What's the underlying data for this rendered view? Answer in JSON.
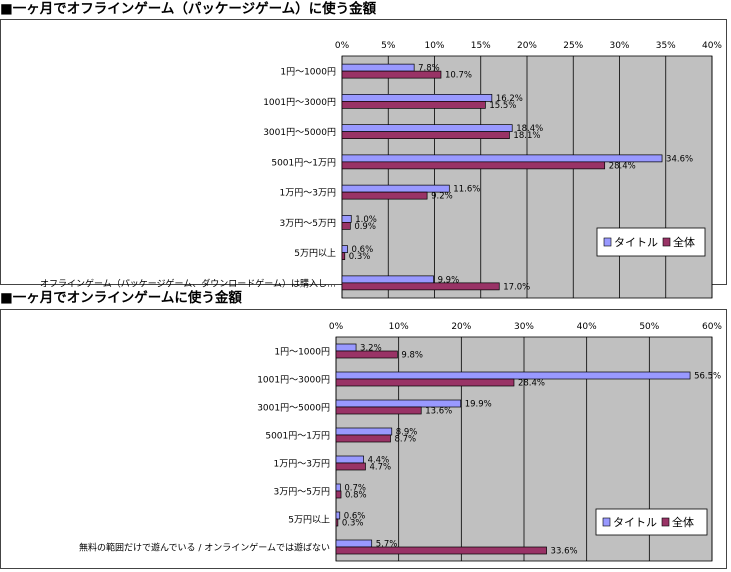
{
  "sections": [
    {
      "title": "■一ヶ月でオフラインゲーム（パッケージゲーム）に使う金額"
    },
    {
      "title": "■一ヶ月でオンラインゲームに使う金額"
    }
  ],
  "colors": {
    "title_series": "#9999ff",
    "all_series": "#993366",
    "plot_bg": "#c0c0c0"
  },
  "chart_data": [
    {
      "type": "bar",
      "orientation": "horizontal",
      "title": "",
      "categories": [
        "1円～1000円",
        "1001円～3000円",
        "3001円～5000円",
        "5001円～1万円",
        "1万円～3万円",
        "3万円～5万円",
        "5万円以上",
        "オフラインゲーム（パッケージゲーム、ダウンロードゲーム）は購入し…"
      ],
      "series": [
        {
          "name": "タイトル",
          "values": [
            7.8,
            16.2,
            18.4,
            34.6,
            11.6,
            1.0,
            0.6,
            9.9
          ],
          "labels": [
            "7.8%",
            "16.2%",
            "18.4%",
            "34.6%",
            "11.6%",
            "1.0%",
            "0.6%",
            "9.9%"
          ]
        },
        {
          "name": "全体",
          "values": [
            10.7,
            15.5,
            18.1,
            28.4,
            9.2,
            0.9,
            0.3,
            17.0
          ],
          "labels": [
            "10.7%",
            "15.5%",
            "18.1%",
            "28.4%",
            "9.2%",
            "0.9%",
            "0.3%",
            "17.0%"
          ]
        }
      ],
      "xlim": [
        0,
        40
      ],
      "ticks": [
        "0%",
        "5%",
        "10%",
        "15%",
        "20%",
        "25%",
        "30%",
        "35%",
        "40%"
      ],
      "legend": "bottom-right",
      "grid": true
    },
    {
      "type": "bar",
      "orientation": "horizontal",
      "title": "",
      "categories": [
        "1円～1000円",
        "1001円～3000円",
        "3001円～5000円",
        "5001円～1万円",
        "1万円～3万円",
        "3万円～5万円",
        "5万円以上",
        "無料の範囲だけで遊んでいる / オンラインゲームでは遊ばない"
      ],
      "series": [
        {
          "name": "タイトル",
          "values": [
            3.2,
            56.5,
            19.9,
            8.9,
            4.4,
            0.7,
            0.6,
            5.7
          ],
          "labels": [
            "3.2%",
            "56.5%",
            "19.9%",
            "8.9%",
            "4.4%",
            "0.7%",
            "0.6%",
            "5.7%"
          ]
        },
        {
          "name": "全体",
          "values": [
            9.8,
            28.4,
            13.6,
            8.7,
            4.7,
            0.8,
            0.3,
            33.6
          ],
          "labels": [
            "9.8%",
            "28.4%",
            "13.6%",
            "8.7%",
            "4.7%",
            "0.8%",
            "0.3%",
            "33.6%"
          ]
        }
      ],
      "xlim": [
        0,
        60
      ],
      "ticks": [
        "0%",
        "10%",
        "20%",
        "30%",
        "40%",
        "50%",
        "60%"
      ],
      "legend": "bottom-right",
      "grid": true
    }
  ]
}
